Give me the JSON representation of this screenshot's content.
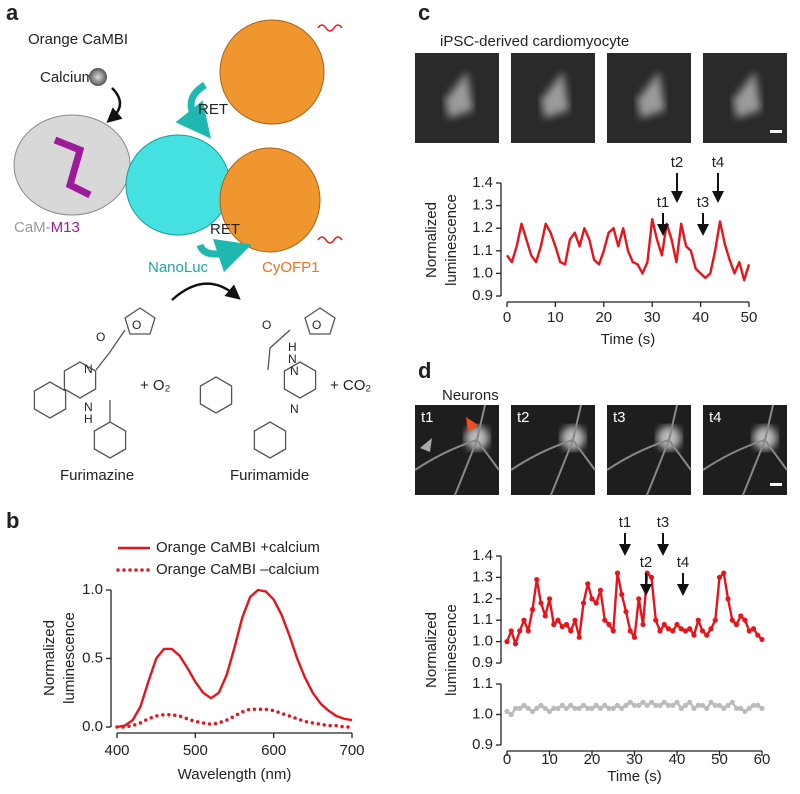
{
  "panel_labels": [
    "a",
    "b",
    "c",
    "d"
  ],
  "diagram": {
    "title": "Orange CaMBI",
    "calcium": "Calcium",
    "ret": [
      "RET",
      "RET"
    ],
    "cam": "CaM-",
    "m13": "M13",
    "nanoluc": "NanoLuc",
    "cyofp1": "CyOFP1",
    "reactant_atoms": [
      "O",
      "O",
      "N",
      "N",
      "H"
    ],
    "product_atoms": [
      "O",
      "O",
      "N",
      "H",
      "N",
      "N"
    ],
    "plus_o2": "+ O₂",
    "plus_co2": "+ CO₂",
    "furimazine": "Furimazine",
    "furimamide": "Furimamide"
  },
  "images": {
    "cardiomyocyte_title": "iPSC-derived cardiomyocyte",
    "neurons_title": "Neurons",
    "neuron_frame_labels": [
      "t1",
      "t2",
      "t3",
      "t4"
    ]
  },
  "chart_data": [
    {
      "type": "line",
      "legend": "top-left",
      "xlabel": "Wavelength (nm)",
      "ylabel": [
        "Normalized",
        "luminescence"
      ],
      "x": [
        400,
        410,
        420,
        430,
        440,
        450,
        460,
        470,
        480,
        490,
        500,
        510,
        520,
        530,
        540,
        550,
        560,
        570,
        580,
        590,
        600,
        610,
        620,
        630,
        640,
        650,
        660,
        670,
        680,
        690,
        700
      ],
      "series": [
        {
          "name": "Orange CaMBI +calcium",
          "color": "#e8141b",
          "line_style": "solid",
          "values": [
            0,
            0.01,
            0.05,
            0.15,
            0.33,
            0.5,
            0.57,
            0.57,
            0.52,
            0.43,
            0.33,
            0.25,
            0.21,
            0.25,
            0.38,
            0.58,
            0.8,
            0.95,
            1.0,
            0.99,
            0.93,
            0.82,
            0.67,
            0.5,
            0.36,
            0.25,
            0.17,
            0.12,
            0.08,
            0.06,
            0.05
          ]
        },
        {
          "name": "Orange CaMBI –calcium",
          "color": "#e8141b",
          "line_style": "dotted",
          "values": [
            0,
            0,
            0.01,
            0.03,
            0.06,
            0.08,
            0.09,
            0.09,
            0.08,
            0.06,
            0.04,
            0.03,
            0.02,
            0.03,
            0.05,
            0.08,
            0.11,
            0.13,
            0.13,
            0.13,
            0.12,
            0.1,
            0.08,
            0.06,
            0.04,
            0.03,
            0.02,
            0.01,
            0.01,
            0,
            0
          ]
        }
      ],
      "xlim": [
        400,
        700
      ],
      "xticks": [
        400,
        500,
        600,
        700
      ],
      "ylim": [
        0,
        1
      ],
      "yticks": [
        {
          "value": 0,
          "label": "0.0"
        },
        0.5,
        {
          "value": 1,
          "label": "1.0"
        }
      ]
    },
    {
      "type": "line",
      "xlabel": "Time (s)",
      "ylabel": [
        "Normalized",
        "luminescence"
      ],
      "annotations": [
        "t1",
        "t2",
        "t3",
        "t4"
      ],
      "x": [
        0,
        1,
        2,
        3,
        4,
        5,
        6,
        7,
        8,
        9,
        10,
        11,
        12,
        13,
        14,
        15,
        16,
        17,
        18,
        19,
        20,
        21,
        22,
        23,
        24,
        25,
        26,
        27,
        28,
        29,
        30,
        31,
        32,
        33,
        34,
        35,
        36,
        37,
        38,
        39,
        40,
        41,
        42,
        43,
        44,
        45,
        46,
        47,
        48,
        49,
        50
      ],
      "series": [
        {
          "color": "#e8141b",
          "line_style": "solid",
          "values": [
            1.08,
            1.05,
            1.12,
            1.22,
            1.15,
            1.08,
            1.05,
            1.12,
            1.22,
            1.18,
            1.12,
            1.05,
            1.04,
            1.15,
            1.18,
            1.12,
            1.2,
            1.15,
            1.06,
            1.04,
            1.1,
            1.18,
            1.2,
            1.12,
            1.2,
            1.1,
            1.05,
            1.04,
            1.0,
            1.05,
            1.24,
            1.15,
            1.08,
            1.22,
            1.15,
            1.05,
            1.22,
            1.12,
            1.1,
            1.02,
            1.0,
            0.98,
            1.0,
            1.1,
            1.23,
            1.13,
            1.06,
            1.0,
            1.05,
            0.97,
            1.04
          ]
        }
      ],
      "xlim": [
        0,
        50
      ],
      "xticks": [
        0,
        10,
        20,
        30,
        40,
        50
      ],
      "ylim": [
        0.9,
        1.4
      ],
      "yticks": [
        0.9,
        {
          "value": 1,
          "label": "1.0"
        },
        1.1,
        1.2,
        1.3,
        1.4
      ]
    },
    {
      "type": "line",
      "marker": "circle",
      "ylabel": [
        "Normalized",
        "luminescence"
      ],
      "annotations": [
        "t1",
        "t2",
        "t3",
        "t4"
      ],
      "x": [
        0,
        1,
        2,
        3,
        4,
        5,
        6,
        7,
        8,
        9,
        10,
        11,
        12,
        13,
        14,
        15,
        16,
        17,
        18,
        19,
        20,
        21,
        22,
        23,
        24,
        25,
        26,
        27,
        28,
        29,
        30,
        31,
        32,
        33,
        34,
        35,
        36,
        37,
        38,
        39,
        40,
        41,
        42,
        43,
        44,
        45,
        46,
        47,
        48,
        49,
        50,
        51,
        52,
        53,
        54,
        55,
        56,
        57,
        58,
        59,
        60
      ],
      "series": [
        {
          "color": "#e8141b",
          "line_style": "solid",
          "values": [
            1.0,
            1.05,
            0.99,
            1.05,
            1.1,
            1.05,
            1.15,
            1.29,
            1.18,
            1.12,
            1.2,
            1.08,
            1.1,
            1.07,
            1.08,
            1.05,
            1.1,
            1.02,
            1.18,
            1.27,
            1.2,
            1.18,
            1.24,
            1.1,
            1.08,
            1.05,
            1.32,
            1.22,
            1.14,
            1.05,
            1.02,
            1.2,
            1.08,
            1.32,
            1.3,
            1.1,
            1.05,
            1.08,
            1.06,
            1.05,
            1.08,
            1.06,
            1.05,
            1.06,
            1.03,
            1.1,
            1.05,
            1.03,
            1.06,
            1.1,
            1.3,
            1.32,
            1.2,
            1.1,
            1.08,
            1.12,
            1.1,
            1.05,
            1.06,
            1.03,
            1.01
          ]
        }
      ],
      "xlim": [
        0,
        60
      ],
      "ylim": [
        0.9,
        1.4
      ],
      "yticks": [
        0.9,
        {
          "value": 1,
          "label": "1.0"
        },
        1.1,
        1.2,
        1.3,
        1.4
      ]
    },
    {
      "type": "line",
      "marker": "circle",
      "xlabel": "Time (s)",
      "x": [
        0,
        1,
        2,
        3,
        4,
        5,
        6,
        7,
        8,
        9,
        10,
        11,
        12,
        13,
        14,
        15,
        16,
        17,
        18,
        19,
        20,
        21,
        22,
        23,
        24,
        25,
        26,
        27,
        28,
        29,
        30,
        31,
        32,
        33,
        34,
        35,
        36,
        37,
        38,
        39,
        40,
        41,
        42,
        43,
        44,
        45,
        46,
        47,
        48,
        49,
        50,
        51,
        52,
        53,
        54,
        55,
        56,
        57,
        58,
        59,
        60
      ],
      "series": [
        {
          "color": "#bbbbbb",
          "line_style": "solid",
          "values": [
            1.01,
            1.0,
            1.02,
            1.02,
            1.03,
            1.02,
            1.01,
            1.02,
            1.03,
            1.02,
            1.01,
            1.02,
            1.02,
            1.03,
            1.02,
            1.03,
            1.02,
            1.02,
            1.03,
            1.02,
            1.02,
            1.03,
            1.02,
            1.03,
            1.02,
            1.02,
            1.03,
            1.02,
            1.03,
            1.04,
            1.03,
            1.03,
            1.04,
            1.03,
            1.04,
            1.03,
            1.03,
            1.04,
            1.03,
            1.03,
            1.04,
            1.02,
            1.03,
            1.04,
            1.02,
            1.03,
            1.03,
            1.02,
            1.04,
            1.03,
            1.03,
            1.02,
            1.03,
            1.04,
            1.02,
            1.02,
            1.01,
            1.02,
            1.03,
            1.03,
            1.02
          ]
        }
      ],
      "xlim": [
        0,
        60
      ],
      "xticks": [
        0,
        10,
        20,
        30,
        40,
        50,
        60
      ],
      "ylim": [
        0.9,
        1.1
      ],
      "yticks": [
        0.9,
        {
          "value": 1,
          "label": "1.0"
        },
        1.1
      ]
    }
  ]
}
